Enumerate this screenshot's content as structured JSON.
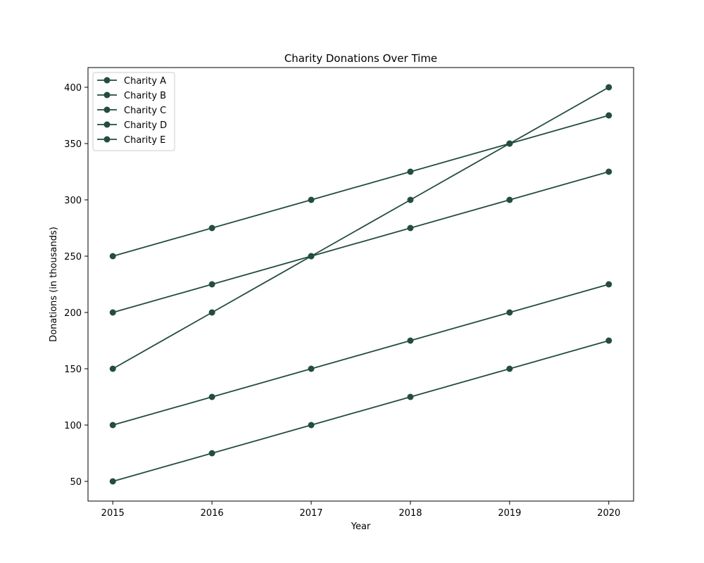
{
  "chart_data": {
    "type": "line",
    "title": "Charity Donations Over Time",
    "xlabel": "Year",
    "ylabel": "Donations (in thousands)",
    "x": [
      2015,
      2016,
      2017,
      2018,
      2019,
      2020
    ],
    "xlim": [
      2014.75,
      2020.25
    ],
    "ylim": [
      32.5,
      417.5
    ],
    "yticks": [
      50,
      100,
      150,
      200,
      250,
      300,
      350,
      400
    ],
    "grid": false,
    "legend_position": "top-left",
    "line_color": "#234d3d",
    "marker": "circle",
    "series": [
      {
        "name": "Charity A",
        "values": [
          150,
          200,
          250,
          300,
          350,
          400
        ]
      },
      {
        "name": "Charity B",
        "values": [
          200,
          225,
          250,
          275,
          300,
          325
        ]
      },
      {
        "name": "Charity C",
        "values": [
          250,
          275,
          300,
          325,
          350,
          375
        ]
      },
      {
        "name": "Charity D",
        "values": [
          100,
          125,
          150,
          175,
          200,
          225
        ]
      },
      {
        "name": "Charity E",
        "values": [
          50,
          75,
          100,
          125,
          150,
          175
        ]
      }
    ]
  }
}
